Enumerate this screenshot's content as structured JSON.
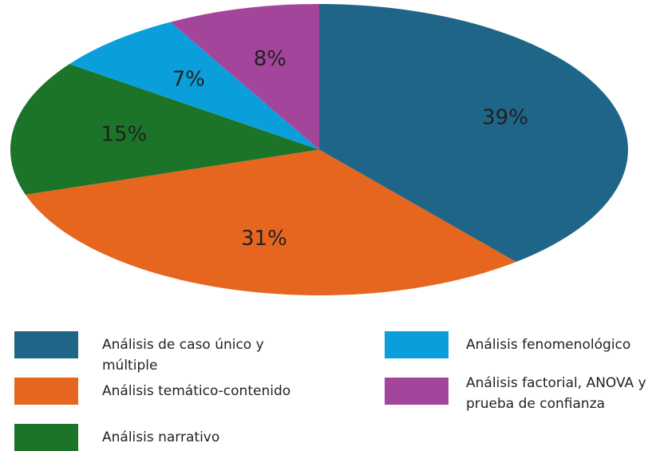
{
  "chart_data": {
    "type": "pie",
    "categories": [
      "Análisis de caso único y múltiple",
      "Análisis temático-contenido",
      "Análisis narrativo",
      "Análisis fenomenológico",
      "Análisis factorial, ANOVA y prueba de confianza"
    ],
    "values": [
      39,
      31,
      15,
      7,
      8
    ],
    "value_labels": [
      "39%",
      "31%",
      "15%",
      "7%",
      "8%"
    ],
    "colors": [
      "#1f6587",
      "#e6661f",
      "#1b7428",
      "#0a9fda",
      "#a2459b"
    ],
    "legend": "bottom"
  }
}
